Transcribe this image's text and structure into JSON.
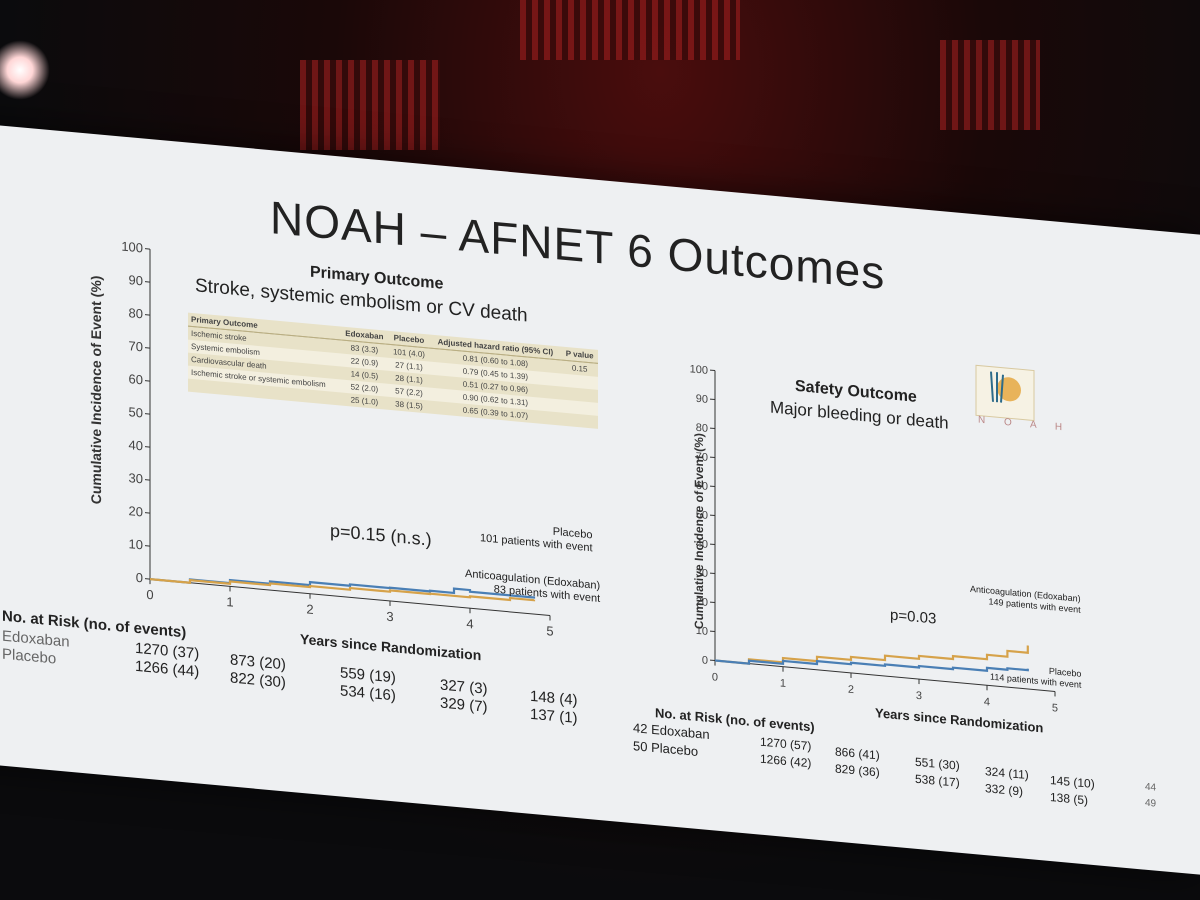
{
  "slide": {
    "title": "NOAH – AFNET 6  Outcomes",
    "logo_text": "N O A H",
    "slide_numbers": [
      "44",
      "49"
    ]
  },
  "colors": {
    "edoxaban": "#d6a24a",
    "placebo": "#4a7fb5",
    "stage_red": "#8a1a1a"
  },
  "primary": {
    "title": "Primary Outcome",
    "subtitle": "Stroke, systemic embolism or CV death",
    "pvalue": "p=0.15 (n.s.)",
    "placebo_label_1": "Placebo",
    "placebo_label_2": "101 patients with event",
    "edox_label_1": "Anticoagulation (Edoxaban)",
    "edox_label_2": "83 patients with event",
    "table": {
      "headers": [
        "Primary Outcome",
        "Edoxaban",
        "Placebo",
        "Adjusted hazard ratio (95% CI)",
        "P value"
      ],
      "rows": [
        [
          "Ischemic stroke",
          "83 (3.3)",
          "101 (4.0)",
          "0.81 (0.60 to 1.08)",
          "0.15"
        ],
        [
          "Systemic embolism",
          "22 (0.9)",
          "27 (1.1)",
          "0.79 (0.45 to 1.39)",
          ""
        ],
        [
          "Cardiovascular death",
          "14 (0.5)",
          "28 (1.1)",
          "0.51 (0.27 to 0.96)",
          ""
        ],
        [
          "Ischemic stroke or systemic embolism",
          "52 (2.0)",
          "57 (2.2)",
          "0.90 (0.62 to 1.31)",
          ""
        ],
        [
          "",
          "25 (1.0)",
          "38 (1.5)",
          "0.65 (0.39 to 1.07)",
          ""
        ]
      ]
    },
    "risk": {
      "header": "No. at Risk (no. of events)",
      "edox_label": "Edoxaban",
      "placebo_label": "Placebo",
      "edox": [
        "1270 (37)",
        "873 (20)",
        "559 (19)",
        "327 (3)",
        "148 (4)"
      ],
      "placebo": [
        "1266 (44)",
        "822 (30)",
        "534 (16)",
        "329 (7)",
        "137 (1)"
      ]
    }
  },
  "safety": {
    "title": "Safety Outcome",
    "subtitle": "Major bleeding or death",
    "pvalue": "p=0.03",
    "edox_label_1": "Anticoagulation (Edoxaban)",
    "edox_label_2": "149 patients with event",
    "placebo_label_1": "Placebo",
    "placebo_label_2": "114 patients with event",
    "risk": {
      "header": "No. at Risk (no. of events)",
      "edox_label": "42  Edoxaban",
      "placebo_label": "50  Placebo",
      "edox": [
        "1270 (57)",
        "866 (41)",
        "551 (30)",
        "324 (11)",
        "145 (10)"
      ],
      "placebo": [
        "1266 (42)",
        "829 (36)",
        "538 (17)",
        "332 (9)",
        "138 (5)"
      ]
    }
  },
  "chart_data": [
    {
      "type": "line",
      "title": "Primary Outcome",
      "subtitle": "Stroke, systemic embolism or CV death",
      "xlabel": "Years since Randomization",
      "ylabel": "Cumulative Incidence of Event (%)",
      "xlim": [
        0,
        5
      ],
      "ylim": [
        0,
        100
      ],
      "xticks": [
        0,
        1,
        2,
        3,
        4,
        5
      ],
      "yticks": [
        0,
        10,
        20,
        30,
        40,
        50,
        60,
        70,
        80,
        90,
        100
      ],
      "series": [
        {
          "name": "Placebo",
          "x": [
            0,
            0.5,
            1,
            1.5,
            2,
            2.5,
            3,
            3.5,
            3.8,
            4,
            4.5,
            4.8
          ],
          "y": [
            0,
            1.0,
            1.9,
            2.6,
            3.5,
            3.9,
            4.0,
            4.2,
            5.5,
            5.0,
            5.0,
            4.7
          ]
        },
        {
          "name": "Anticoagulation (Edoxaban)",
          "x": [
            0,
            0.5,
            1,
            1.5,
            2,
            2.5,
            3,
            3.5,
            4,
            4.5,
            4.8
          ],
          "y": [
            0,
            0.8,
            1.5,
            2.0,
            2.3,
            2.8,
            3.2,
            3.3,
            3.6,
            4.2,
            4.4
          ]
        }
      ]
    },
    {
      "type": "line",
      "title": "Safety Outcome",
      "subtitle": "Major bleeding or death",
      "xlabel": "Years since Randomization",
      "ylabel": "Cumulative Incidence of Event (%)",
      "xlim": [
        0,
        5
      ],
      "ylim": [
        0,
        100
      ],
      "xticks": [
        0,
        1,
        2,
        3,
        4,
        5
      ],
      "yticks": [
        0,
        10,
        20,
        30,
        40,
        50,
        60,
        70,
        80,
        90,
        100
      ],
      "series": [
        {
          "name": "Anticoagulation (Edoxaban)",
          "x": [
            0,
            0.5,
            1,
            1.5,
            2,
            2.5,
            3,
            3.5,
            4,
            4.3,
            4.6
          ],
          "y": [
            0,
            1.5,
            3.0,
            4.5,
            5.5,
            7.0,
            8.0,
            9.0,
            10.5,
            12.5,
            15.0
          ]
        },
        {
          "name": "Placebo",
          "x": [
            0,
            0.5,
            1,
            1.5,
            2,
            2.5,
            3,
            3.5,
            4,
            4.3,
            4.6
          ],
          "y": [
            0,
            1.0,
            2.0,
            3.0,
            3.5,
            4.0,
            4.5,
            5.0,
            6.0,
            6.5,
            7.0
          ]
        }
      ]
    }
  ]
}
